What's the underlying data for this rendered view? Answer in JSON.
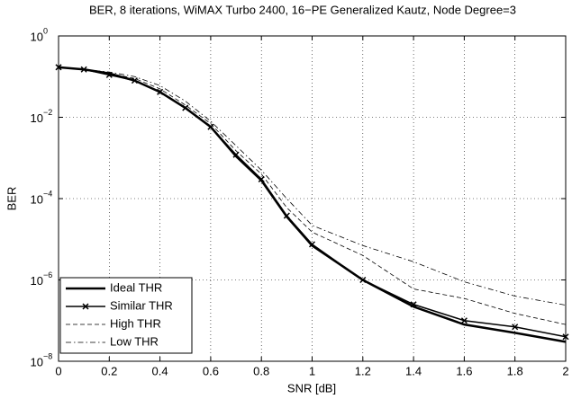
{
  "chart_data": {
    "type": "line",
    "title": "BER, 8 iterations, WiMAX Turbo 2400, 16−PE Generalized Kautz, Node Degree=3",
    "xlabel": "SNR [dB]",
    "ylabel": "BER",
    "x": [
      0,
      0.1,
      0.2,
      0.3,
      0.4,
      0.5,
      0.6,
      0.7,
      0.8,
      0.9,
      1.0,
      1.2,
      1.4,
      1.6,
      1.8,
      2.0
    ],
    "xlim": [
      0,
      2
    ],
    "xticks": [
      0,
      0.2,
      0.4,
      0.6,
      0.8,
      1,
      1.2,
      1.4,
      1.6,
      1.8,
      2
    ],
    "ylim": [
      1e-08,
      1
    ],
    "yscale": "log",
    "yticks": [
      {
        "value": 1e-08,
        "label": "10",
        "exponent": "−8"
      },
      {
        "value": 1e-06,
        "label": "10",
        "exponent": "−6"
      },
      {
        "value": 0.0001,
        "label": "10",
        "exponent": "−4"
      },
      {
        "value": 0.01,
        "label": "10",
        "exponent": "−2"
      },
      {
        "value": 1,
        "label": "10",
        "exponent": "0"
      }
    ],
    "grid": true,
    "legend": "lower left",
    "series": [
      {
        "name": "Ideal THR",
        "color": "#000000",
        "dash": "solid",
        "linewidth": 2.5,
        "marker": "none",
        "values": [
          0.17,
          0.15,
          0.12,
          0.08,
          0.042,
          0.017,
          0.0058,
          0.0011,
          0.00028,
          3.6e-05,
          7e-06,
          1e-06,
          2.2e-07,
          8e-08,
          5e-08,
          3e-08
        ]
      },
      {
        "name": "Similar THR",
        "color": "#000000",
        "dash": "solid",
        "linewidth": 1.5,
        "marker": "x",
        "values": [
          0.17,
          0.15,
          0.11,
          0.08,
          0.042,
          0.017,
          0.0058,
          0.0012,
          0.0003,
          3.8e-05,
          7.5e-06,
          1e-06,
          2.5e-07,
          1e-07,
          7e-08,
          4e-08
        ]
      },
      {
        "name": "High THR",
        "color": "#000000",
        "dash": "dashed",
        "linewidth": 0.8,
        "marker": "none",
        "values": [
          0.17,
          0.15,
          0.12,
          0.09,
          0.05,
          0.02,
          0.007,
          0.0015,
          0.0004,
          6e-05,
          1.5e-05,
          4e-06,
          6e-07,
          3.5e-07,
          1.5e-07,
          8e-08
        ]
      },
      {
        "name": "Low THR",
        "color": "#000000",
        "dash": "dashdot",
        "linewidth": 0.8,
        "marker": "none",
        "values": [
          0.17,
          0.15,
          0.13,
          0.1,
          0.06,
          0.025,
          0.008,
          0.002,
          0.0005,
          0.0001,
          2.2e-05,
          7e-06,
          2.8e-06,
          9e-07,
          4e-07,
          2.4e-07
        ]
      }
    ]
  }
}
